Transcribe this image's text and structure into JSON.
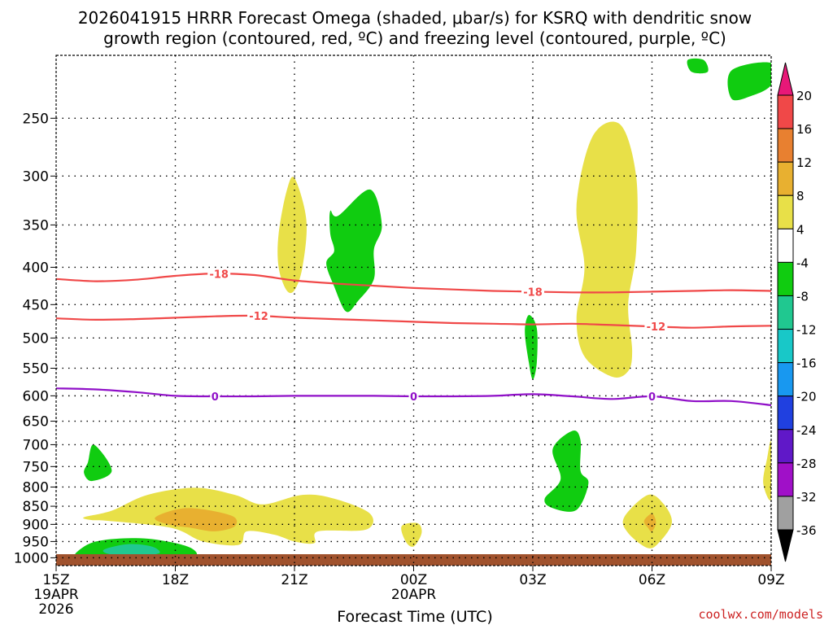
{
  "chart_data": {
    "type": "time-height contour plot",
    "title_line1": "2026041915 HRRR Forecast Omega (shaded, μbar/s) for KSRQ with dendritic snow",
    "title_line2": "growth region (contoured, red, ºC) and freezing level (contoured, purple, ºC)",
    "xlabel": "Forecast Time (UTC)",
    "ylabel": "",
    "x_ticks": [
      {
        "label": "15Z",
        "hours": 0,
        "sub": [
          "19APR",
          "2026"
        ]
      },
      {
        "label": "18Z",
        "hours": 3,
        "sub": []
      },
      {
        "label": "21Z",
        "hours": 6,
        "sub": []
      },
      {
        "label": "00Z",
        "hours": 9,
        "sub": [
          "20APR"
        ]
      },
      {
        "label": "03Z",
        "hours": 12,
        "sub": []
      },
      {
        "label": "06Z",
        "hours": 15,
        "sub": []
      },
      {
        "label": "09Z",
        "hours": 18,
        "sub": []
      }
    ],
    "xlim_hours": [
      0,
      18
    ],
    "y_ticks": [
      250,
      300,
      350,
      400,
      450,
      500,
      550,
      600,
      650,
      700,
      750,
      800,
      850,
      900,
      950,
      1000
    ],
    "ylim_hPa": [
      1025,
      205
    ],
    "y_scale": "log-pressure",
    "grid": true,
    "colorbar": {
      "levels": [
        20,
        16,
        12,
        8,
        4,
        -4,
        -8,
        -12,
        -16,
        -20,
        -24,
        -28,
        -32,
        -36
      ],
      "colors": [
        "#e81878",
        "#f04848",
        "#e88030",
        "#e8b030",
        "#e8e048",
        "#ffffff",
        "#10cc10",
        "#20c890",
        "#18c8c8",
        "#1898f0",
        "#2040e0",
        "#6018c8",
        "#a010c8",
        "#a0a0a0",
        "#000000"
      ]
    },
    "shaded_regions": [
      {
        "color": "#10cc10",
        "points": [
          [
            16.3,
            208
          ],
          [
            16.4,
            216
          ],
          [
            16.0,
            216
          ],
          [
            15.9,
            208
          ]
        ]
      },
      {
        "color": "#10cc10",
        "points": [
          [
            17.0,
            215
          ],
          [
            18.0,
            210
          ],
          [
            18.0,
            225
          ],
          [
            17.5,
            233
          ],
          [
            17.0,
            235
          ]
        ]
      },
      {
        "color": "#e8e048",
        "points": [
          [
            13.1,
            330
          ],
          [
            13.5,
            265
          ],
          [
            14.2,
            255
          ],
          [
            14.6,
            300
          ],
          [
            14.6,
            380
          ],
          [
            14.4,
            450
          ],
          [
            14.5,
            520
          ],
          [
            14.4,
            555
          ],
          [
            14.0,
            565
          ],
          [
            13.3,
            530
          ],
          [
            13.1,
            470
          ],
          [
            13.3,
            400
          ]
        ]
      },
      {
        "color": "#e8e048",
        "points": [
          [
            5.6,
            360
          ],
          [
            5.8,
            315
          ],
          [
            6.0,
            302
          ],
          [
            6.3,
            345
          ],
          [
            6.2,
            400
          ],
          [
            6.0,
            430
          ],
          [
            5.8,
            430
          ],
          [
            5.6,
            400
          ]
        ]
      },
      {
        "color": "#10cc10",
        "points": [
          [
            6.9,
            335
          ],
          [
            7.1,
            340
          ],
          [
            7.9,
            313
          ],
          [
            8.2,
            350
          ],
          [
            8.0,
            378
          ],
          [
            8.0,
            415
          ],
          [
            7.6,
            445
          ],
          [
            7.3,
            460
          ],
          [
            7.0,
            425
          ],
          [
            6.8,
            395
          ],
          [
            7.0,
            380
          ],
          [
            6.9,
            360
          ]
        ]
      },
      {
        "color": "#10cc10",
        "points": [
          [
            11.9,
            465
          ],
          [
            12.1,
            485
          ],
          [
            12.1,
            540
          ],
          [
            12.0,
            570
          ],
          [
            11.9,
            540
          ],
          [
            11.8,
            490
          ]
        ]
      },
      {
        "color": "#10cc10",
        "points": [
          [
            12.5,
            710
          ],
          [
            13.0,
            670
          ],
          [
            13.2,
            690
          ],
          [
            13.2,
            760
          ],
          [
            13.4,
            790
          ],
          [
            13.1,
            860
          ],
          [
            12.5,
            855
          ],
          [
            12.3,
            830
          ],
          [
            12.7,
            780
          ]
        ]
      },
      {
        "color": "#e8e048",
        "points": [
          [
            18.0,
            695
          ],
          [
            17.9,
            730
          ],
          [
            17.8,
            790
          ],
          [
            18.0,
            830
          ]
        ]
      },
      {
        "color": "#10cc10",
        "points": [
          [
            0.8,
            740
          ],
          [
            0.95,
            700
          ],
          [
            1.4,
            760
          ],
          [
            0.9,
            785
          ],
          [
            0.7,
            765
          ]
        ]
      },
      {
        "color": "#e8e048",
        "points": [
          [
            0.7,
            880
          ],
          [
            1.4,
            862
          ],
          [
            2.3,
            820
          ],
          [
            3.5,
            802
          ],
          [
            4.5,
            820
          ],
          [
            5.2,
            845
          ],
          [
            6.2,
            820
          ],
          [
            7.0,
            830
          ],
          [
            7.9,
            870
          ],
          [
            7.8,
            915
          ],
          [
            6.6,
            920
          ],
          [
            6.5,
            955
          ],
          [
            6.0,
            950
          ],
          [
            5.5,
            930
          ],
          [
            4.8,
            920
          ],
          [
            4.6,
            960
          ],
          [
            3.7,
            950
          ],
          [
            2.9,
            910
          ],
          [
            1.3,
            890
          ],
          [
            0.9,
            888
          ]
        ]
      },
      {
        "color": "#e8b030",
        "points": [
          [
            2.5,
            880
          ],
          [
            3.3,
            855
          ],
          [
            4.4,
            875
          ],
          [
            4.5,
            905
          ],
          [
            4.0,
            920
          ],
          [
            3.4,
            910
          ],
          [
            2.8,
            900
          ]
        ]
      },
      {
        "color": "#e8e048",
        "points": [
          [
            8.7,
            905
          ],
          [
            9.1,
            897
          ],
          [
            9.2,
            925
          ],
          [
            9.0,
            965
          ],
          [
            8.8,
            950
          ]
        ]
      },
      {
        "color": "#e8e048",
        "points": [
          [
            14.3,
            880
          ],
          [
            14.9,
            820
          ],
          [
            15.3,
            845
          ],
          [
            15.5,
            895
          ],
          [
            15.2,
            950
          ],
          [
            14.9,
            970
          ],
          [
            14.4,
            925
          ]
        ]
      },
      {
        "color": "#e8b030",
        "points": [
          [
            14.8,
            890
          ],
          [
            15.0,
            870
          ],
          [
            15.1,
            895
          ],
          [
            15.0,
            920
          ],
          [
            14.9,
            910
          ]
        ]
      },
      {
        "color": "#10cc10",
        "points": [
          [
            0.5,
            985
          ],
          [
            1.0,
            950
          ],
          [
            2.0,
            940
          ],
          [
            2.8,
            950
          ],
          [
            3.4,
            970
          ],
          [
            3.5,
            995
          ],
          [
            2.8,
            1000
          ],
          [
            1.3,
            1000
          ],
          [
            0.6,
            1000
          ]
        ]
      },
      {
        "color": "#20c890",
        "points": [
          [
            1.2,
            975
          ],
          [
            1.8,
            958
          ],
          [
            2.4,
            965
          ],
          [
            2.6,
            985
          ],
          [
            2.1,
            993
          ],
          [
            1.4,
            990
          ]
        ]
      }
    ],
    "contours": [
      {
        "name": "-18",
        "color": "#f04848",
        "points": [
          [
            0,
            415
          ],
          [
            1,
            418
          ],
          [
            2,
            416
          ],
          [
            3,
            411
          ],
          [
            4,
            408
          ],
          [
            5,
            410
          ],
          [
            6,
            417
          ],
          [
            7,
            421
          ],
          [
            8,
            424
          ],
          [
            9,
            427
          ],
          [
            10,
            429
          ],
          [
            11,
            431
          ],
          [
            12,
            432
          ],
          [
            13,
            433
          ],
          [
            14,
            433
          ],
          [
            15,
            432
          ],
          [
            16,
            431
          ],
          [
            17,
            430
          ],
          [
            18,
            431
          ]
        ],
        "labels": [
          {
            "x": 4.1,
            "text": "-18"
          },
          {
            "x": 12.0,
            "text": "-18"
          }
        ]
      },
      {
        "name": "-12",
        "color": "#f04848",
        "points": [
          [
            0,
            470
          ],
          [
            1,
            472
          ],
          [
            2,
            471
          ],
          [
            3,
            469
          ],
          [
            4,
            467
          ],
          [
            5,
            466
          ],
          [
            6,
            469
          ],
          [
            7,
            471
          ],
          [
            8,
            473
          ],
          [
            9,
            475
          ],
          [
            10,
            477
          ],
          [
            11,
            478
          ],
          [
            12,
            479
          ],
          [
            13,
            478
          ],
          [
            14,
            480
          ],
          [
            15,
            482
          ],
          [
            16,
            484
          ],
          [
            17,
            482
          ],
          [
            18,
            481
          ]
        ],
        "labels": [
          {
            "x": 5.1,
            "text": "-12"
          },
          {
            "x": 15.1,
            "text": "-12"
          }
        ]
      },
      {
        "name": "0",
        "color": "#9010c8",
        "points": [
          [
            0,
            586
          ],
          [
            1,
            588
          ],
          [
            2,
            593
          ],
          [
            3,
            600
          ],
          [
            4,
            601
          ],
          [
            5,
            601
          ],
          [
            6,
            600
          ],
          [
            7,
            600
          ],
          [
            8,
            600
          ],
          [
            9,
            601
          ],
          [
            10,
            601
          ],
          [
            11,
            600
          ],
          [
            12,
            597
          ],
          [
            13,
            601
          ],
          [
            14,
            606
          ],
          [
            15,
            601
          ],
          [
            16,
            610
          ],
          [
            17,
            610
          ],
          [
            18,
            618
          ]
        ],
        "labels": [
          {
            "x": 4.0,
            "text": "0"
          },
          {
            "x": 9.0,
            "text": "0"
          },
          {
            "x": 15.0,
            "text": "0"
          }
        ]
      }
    ],
    "terrain_color": "#a0522d",
    "credit": "coolwx.com/models"
  }
}
